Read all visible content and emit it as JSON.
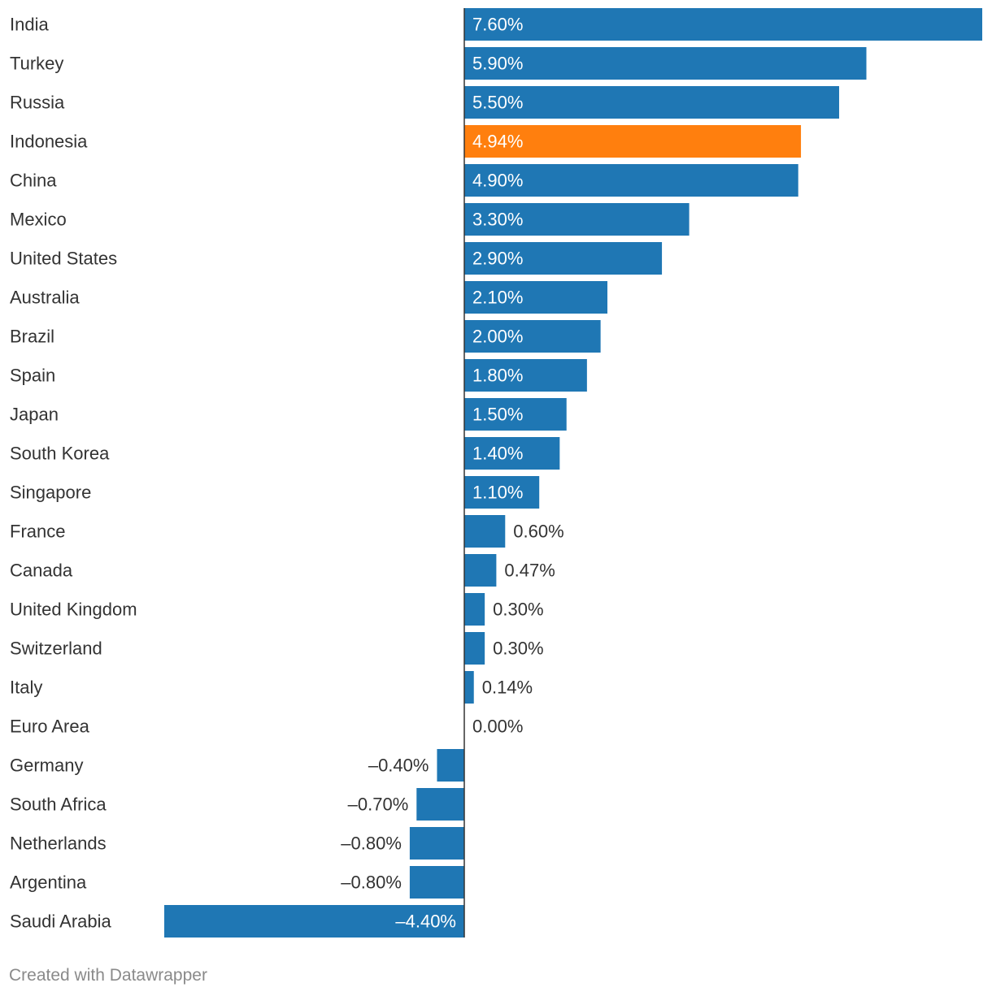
{
  "chart_data": {
    "type": "bar",
    "orientation": "horizontal",
    "categories": [
      "India",
      "Turkey",
      "Russia",
      "Indonesia",
      "China",
      "Mexico",
      "United States",
      "Australia",
      "Brazil",
      "Spain",
      "Japan",
      "South Korea",
      "Singapore",
      "France",
      "Canada",
      "United Kingdom",
      "Switzerland",
      "Italy",
      "Euro Area",
      "Germany",
      "South Africa",
      "Netherlands",
      "Argentina",
      "Saudi Arabia"
    ],
    "values": [
      7.6,
      5.9,
      5.5,
      4.94,
      4.9,
      3.3,
      2.9,
      2.1,
      2.0,
      1.8,
      1.5,
      1.4,
      1.1,
      0.6,
      0.47,
      0.3,
      0.3,
      0.14,
      0.0,
      -0.4,
      -0.7,
      -0.8,
      -0.8,
      -4.4
    ],
    "value_labels": [
      "7.60%",
      "5.90%",
      "5.50%",
      "4.94%",
      "4.90%",
      "3.30%",
      "2.90%",
      "2.10%",
      "2.00%",
      "1.80%",
      "1.50%",
      "1.40%",
      "1.10%",
      "0.60%",
      "0.47%",
      "0.30%",
      "0.30%",
      "0.14%",
      "0.00%",
      "–0.40%",
      "–0.70%",
      "–0.80%",
      "–0.80%",
      "–4.40%"
    ],
    "highlight": "Indonesia",
    "xlim": [
      -4.4,
      7.6
    ],
    "title": "",
    "xlabel": "",
    "ylabel": "",
    "grid": false,
    "legend": "none"
  },
  "colors": {
    "bar": "#1f77b4",
    "highlight": "#ff7f0e",
    "category_text": "#333333",
    "inside_label": "#ffffff",
    "outside_label": "#333333",
    "baseline": "#333333",
    "credit": "#8a8a8a"
  },
  "footer": {
    "credit": "Created with Datawrapper"
  }
}
